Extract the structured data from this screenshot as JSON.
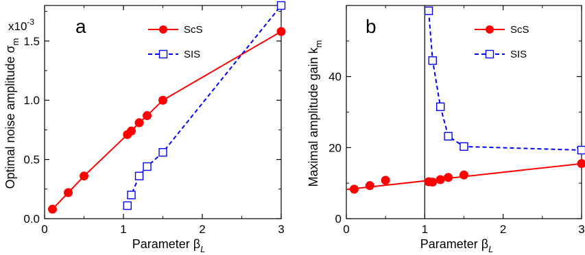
{
  "chart_data": [
    {
      "panel_label": "a",
      "type": "line",
      "xlabel": "Parameter β",
      "xlabel_sub": "L",
      "ylabel": "Optimal noise amplitude σ",
      "ylabel_sub": "m",
      "y_multiplier": "x10",
      "y_multiplier_exp": "-3",
      "xlim": [
        0,
        3
      ],
      "ylim": [
        0,
        1.8
      ],
      "x_ticks": [
        0,
        1,
        2,
        3
      ],
      "x_tick_labels": [
        "0",
        "1",
        "2",
        "3"
      ],
      "y_ticks": [
        0,
        0.5,
        1.0,
        1.5
      ],
      "y_tick_labels": [
        "0.0",
        "0.5",
        "1.0",
        "1.5"
      ],
      "legend_position": "top-right",
      "series": [
        {
          "name": "ScS",
          "color": "#ff0000",
          "line": "solid",
          "marker": "filled-circle",
          "x": [
            0.1,
            0.3,
            0.5,
            1.05,
            1.1,
            1.2,
            1.3,
            1.5,
            3.0
          ],
          "y": [
            0.08,
            0.22,
            0.36,
            0.71,
            0.74,
            0.81,
            0.87,
            1.0,
            1.58
          ]
        },
        {
          "name": "SIS",
          "color": "#0000ff",
          "line": "dashed",
          "marker": "open-square",
          "x": [
            1.05,
            1.1,
            1.2,
            1.3,
            1.5,
            3.0
          ],
          "y": [
            0.11,
            0.2,
            0.36,
            0.44,
            0.56,
            1.8
          ]
        }
      ]
    },
    {
      "panel_label": "b",
      "type": "line",
      "xlabel": "Parameter β",
      "xlabel_sub": "L",
      "ylabel": "Maximal amplitude gain k",
      "ylabel_sub": "m",
      "xlim": [
        0,
        3
      ],
      "ylim": [
        0,
        60
      ],
      "x_ticks": [
        0,
        1,
        2,
        3
      ],
      "x_tick_labels": [
        "0",
        "1",
        "2",
        "3"
      ],
      "y_ticks": [
        0,
        20,
        40
      ],
      "y_tick_labels": [
        "0",
        "20",
        "40"
      ],
      "vertical_line_x": 1,
      "legend_position": "top-right",
      "series": [
        {
          "name": "ScS",
          "color": "#ff0000",
          "line": "solid",
          "marker": "filled-circle",
          "x": [
            0.1,
            0.3,
            0.5,
            1.05,
            1.1,
            1.2,
            1.3,
            1.5,
            3.0
          ],
          "y": [
            8.3,
            9.3,
            10.8,
            10.4,
            10.3,
            11.0,
            11.6,
            12.3,
            15.5
          ],
          "fit_line": {
            "x": [
              0.0,
              3.0
            ],
            "y": [
              8.2,
              15.5
            ]
          }
        },
        {
          "name": "SIS",
          "color": "#0000ff",
          "line": "dashed",
          "marker": "open-square",
          "x": [
            1.05,
            1.1,
            1.2,
            1.3,
            1.5,
            3.0
          ],
          "y": [
            58.5,
            44.5,
            31.5,
            23.2,
            20.3,
            19.3
          ]
        }
      ]
    }
  ]
}
